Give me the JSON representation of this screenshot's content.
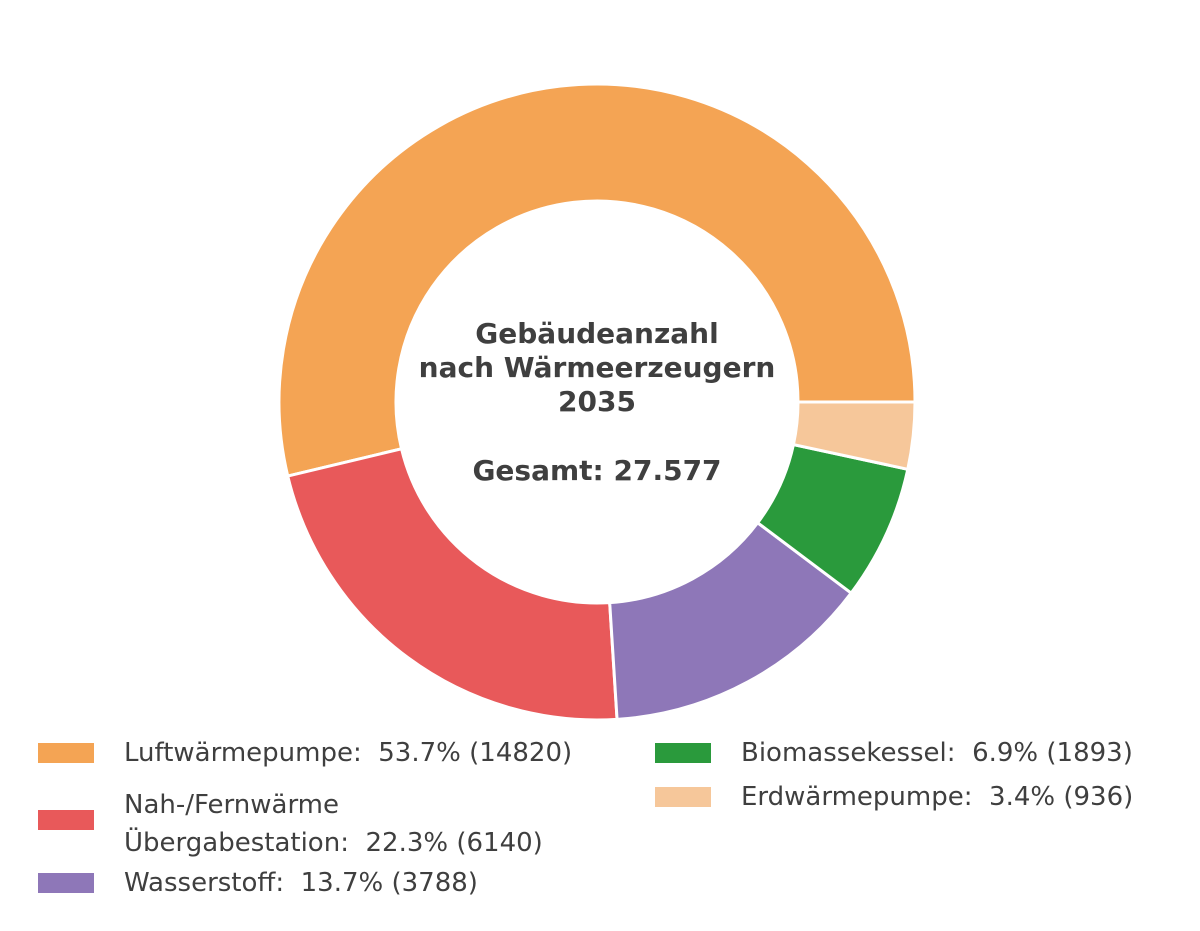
{
  "chart_data": {
    "type": "pie",
    "donut": true,
    "center_text": [
      "Gebäudeanzahl",
      "nach Wärmeerzeugern",
      "2035",
      "",
      "Gesamt: 27.577"
    ],
    "categories": [
      "Luftwärmepumpe",
      "Nah-/Fernwärme Übergabestation",
      "Wasserstoff",
      "Biomassekessel",
      "Erdwärmepumpe"
    ],
    "values": [
      14820,
      6140,
      3788,
      1893,
      936
    ],
    "percent_labels": [
      "53.7%",
      "22.3%",
      "13.7%",
      "6.9%",
      "3.4%"
    ],
    "count_labels": [
      "(14820)",
      "(6140)",
      "(3788)",
      "(1893)",
      "(936)"
    ],
    "colors": [
      "#F4A454",
      "#E8595A",
      "#8E77B8",
      "#2A9A3C",
      "#F6C79A"
    ],
    "legend_placement": "bottom"
  }
}
